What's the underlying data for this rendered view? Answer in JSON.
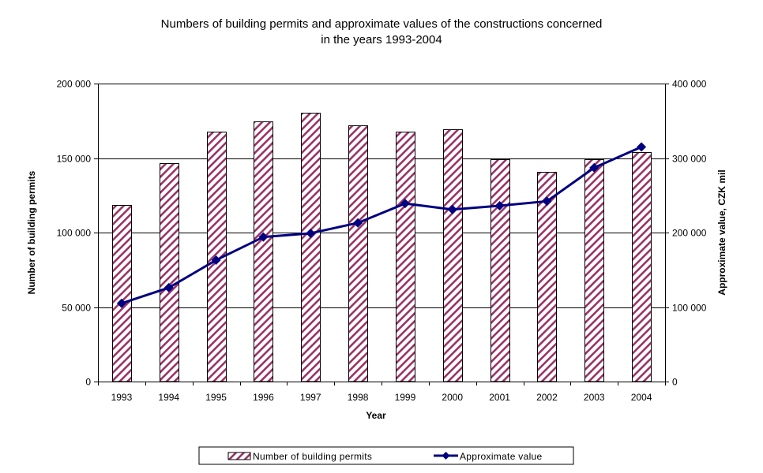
{
  "chart_data": {
    "type": "bar+line",
    "title_lines": [
      "Numbers of building permits and approximate values of the constructions concerned",
      "in  the years 1993-2004"
    ],
    "xlabel": "Year",
    "ylabel_left": "Number of building permits",
    "ylabel_right": "Approximate value, CZK mil",
    "categories": [
      "1993",
      "1994",
      "1995",
      "1996",
      "1997",
      "1998",
      "1999",
      "2000",
      "2001",
      "2002",
      "2003",
      "2004"
    ],
    "y_left": {
      "lim": [
        0,
        200000
      ],
      "ticks": [
        0,
        50000,
        100000,
        150000,
        200000
      ],
      "tick_labels": [
        "0",
        "50 000",
        "100 000",
        "150 000",
        "200 000"
      ]
    },
    "y_right": {
      "lim": [
        0,
        400000
      ],
      "ticks": [
        0,
        100000,
        200000,
        300000,
        400000
      ],
      "tick_labels": [
        "0",
        "100 000",
        "200 000",
        "300 000",
        "400 000"
      ]
    },
    "grid": true,
    "legend_position": "bottom",
    "series": [
      {
        "name": "Number of building permits",
        "type": "bar",
        "axis": "left",
        "color": "#993366",
        "pattern": "diagonal-hatch",
        "values": [
          118500,
          146500,
          167500,
          174500,
          180500,
          172000,
          167500,
          169500,
          149000,
          140500,
          149000,
          154000
        ]
      },
      {
        "name": "Approximate value",
        "type": "line",
        "axis": "right",
        "color": "#000080",
        "marker": "diamond",
        "values": [
          105000,
          126000,
          163000,
          194000,
          199000,
          213000,
          239000,
          231000,
          236000,
          242000,
          287000,
          315000
        ]
      }
    ]
  }
}
